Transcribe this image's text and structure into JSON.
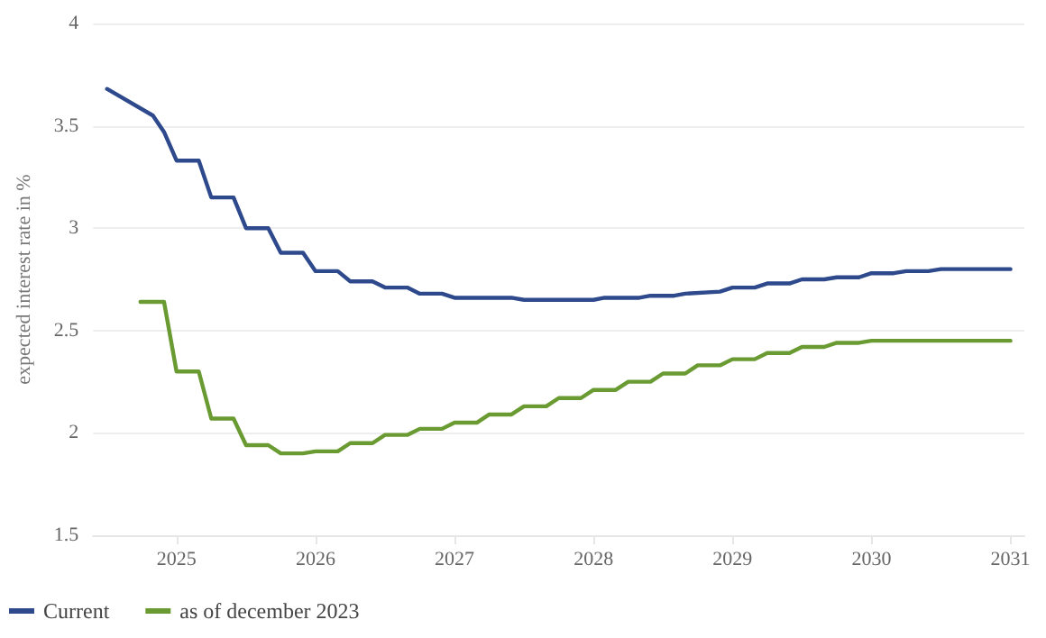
{
  "chart_data": {
    "type": "line",
    "ylabel": "expected interest rate in %",
    "xlim": [
      2024.4,
      2031.1
    ],
    "xticks": [
      2025,
      2026,
      2027,
      2028,
      2029,
      2030,
      2031
    ],
    "ylim": [
      1.5,
      4
    ],
    "yticks": [
      1.5,
      2,
      2.5,
      3,
      3.5,
      4
    ],
    "grid": "y",
    "legend": "bottom left",
    "marker": "none",
    "line_style": "solid",
    "series": [
      {
        "name": "Current",
        "color": "#2e4a8c",
        "x": [
          2024.5,
          2024.83,
          2024.91,
          2025.0,
          2025.16,
          2025.25,
          2025.41,
          2025.5,
          2025.66,
          2025.75,
          2025.91,
          2026.0,
          2026.16,
          2026.25,
          2026.41,
          2026.5,
          2026.66,
          2026.75,
          2026.91,
          2027.0,
          2027.41,
          2027.5,
          2028.0,
          2028.08,
          2028.33,
          2028.41,
          2028.58,
          2028.66,
          2028.91,
          2029.0,
          2029.16,
          2029.25,
          2029.41,
          2029.5,
          2029.66,
          2029.75,
          2029.91,
          2030.0,
          2030.16,
          2030.25,
          2030.41,
          2030.5,
          2031.0
        ],
        "values": [
          3.68,
          3.55,
          3.47,
          3.33,
          3.33,
          3.15,
          3.15,
          3.0,
          3.0,
          2.88,
          2.88,
          2.79,
          2.79,
          2.74,
          2.74,
          2.71,
          2.71,
          2.68,
          2.68,
          2.66,
          2.66,
          2.65,
          2.65,
          2.66,
          2.66,
          2.67,
          2.67,
          2.68,
          2.69,
          2.71,
          2.71,
          2.73,
          2.73,
          2.75,
          2.75,
          2.76,
          2.76,
          2.78,
          2.78,
          2.79,
          2.79,
          2.8,
          2.8
        ]
      },
      {
        "name": "as of december 2023",
        "color": "#6a9a32",
        "x": [
          2024.74,
          2024.91,
          2025.0,
          2025.16,
          2025.25,
          2025.41,
          2025.5,
          2025.66,
          2025.75,
          2025.91,
          2026.0,
          2026.16,
          2026.25,
          2026.41,
          2026.5,
          2026.66,
          2026.75,
          2026.91,
          2027.0,
          2027.16,
          2027.25,
          2027.41,
          2027.5,
          2027.66,
          2027.75,
          2027.91,
          2028.0,
          2028.16,
          2028.25,
          2028.41,
          2028.5,
          2028.66,
          2028.75,
          2028.91,
          2029.0,
          2029.16,
          2029.25,
          2029.41,
          2029.5,
          2029.66,
          2029.75,
          2029.91,
          2030.0,
          2031.0
        ],
        "values": [
          2.64,
          2.64,
          2.3,
          2.3,
          2.07,
          2.07,
          1.94,
          1.94,
          1.9,
          1.9,
          1.91,
          1.91,
          1.95,
          1.95,
          1.99,
          1.99,
          2.02,
          2.02,
          2.05,
          2.05,
          2.09,
          2.09,
          2.13,
          2.13,
          2.17,
          2.17,
          2.21,
          2.21,
          2.25,
          2.25,
          2.29,
          2.29,
          2.33,
          2.33,
          2.36,
          2.36,
          2.39,
          2.39,
          2.42,
          2.42,
          2.44,
          2.44,
          2.45,
          2.45
        ]
      }
    ]
  }
}
